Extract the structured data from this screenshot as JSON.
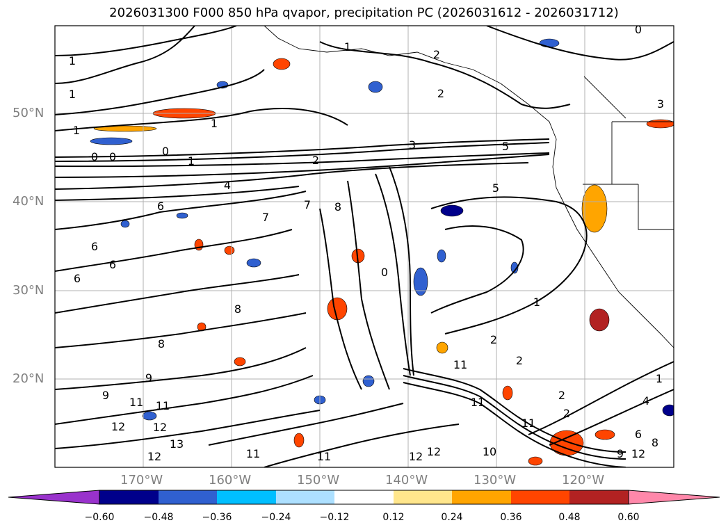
{
  "title": "2026031300 F000 850 hPa qvapor, precipitation PC (2026031612 - 2026031712)",
  "lat_labels": [
    "50°N",
    "40°N",
    "30°N",
    "20°N"
  ],
  "lon_labels": [
    "170°W",
    "160°W",
    "150°W",
    "140°W",
    "130°W",
    "120°W"
  ],
  "colorbar": {
    "ticks": [
      "−0.60",
      "−0.48",
      "−0.36",
      "−0.24",
      "−0.12",
      "0.12",
      "0.24",
      "0.36",
      "0.48",
      "0.60"
    ],
    "colors": [
      "#9932CC",
      "#00008B",
      "#3060D0",
      "#00BFFF",
      "#ADE0FF",
      "#FFFFFF",
      "#FFE68C",
      "#FFA500",
      "#FF4500",
      "#B22222",
      "#FF88AA"
    ]
  },
  "contour_labels": [
    "0",
    "1",
    "1",
    "1",
    "1",
    "0",
    "0",
    "0",
    "1",
    "1",
    "2",
    "3",
    "4",
    "5",
    "5",
    "1",
    "2",
    "6",
    "7",
    "7",
    "8",
    "6",
    "6",
    "6",
    "8",
    "9",
    "8",
    "9",
    "11",
    "11",
    "12",
    "12",
    "13",
    "12",
    "11",
    "11",
    "12",
    "10",
    "12",
    "11",
    "11",
    "11",
    "12",
    "2",
    "2",
    "1",
    "2",
    "3",
    "4",
    "6",
    "8",
    "9",
    "2",
    "2",
    "0"
  ]
}
